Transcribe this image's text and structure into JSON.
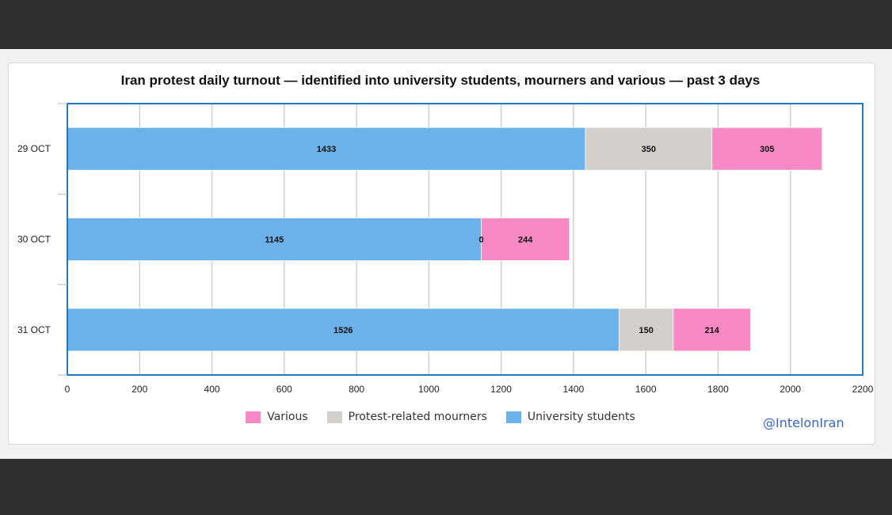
{
  "chart_data": {
    "type": "bar",
    "orientation": "horizontal",
    "stacked": true,
    "title": "Iran protest daily turnout — identified into university students, mourners and various — past 3 days",
    "categories": [
      "29 OCT",
      "30 OCT",
      "31 OCT"
    ],
    "series": [
      {
        "name": "University students",
        "color": "#6cb2ea",
        "values": [
          1433,
          1145,
          1526
        ]
      },
      {
        "name": "Protest-related mourners",
        "color": "#d2cfcc",
        "values": [
          350,
          0,
          150
        ]
      },
      {
        "name": "Various",
        "color": "#f78ac4",
        "values": [
          305,
          244,
          214
        ]
      }
    ],
    "legend_order": [
      "Various",
      "Protest-related mourners",
      "University students"
    ],
    "xlim": [
      0,
      2200
    ],
    "xticks": [
      0,
      200,
      400,
      600,
      800,
      1000,
      1200,
      1400,
      1600,
      1800,
      2000,
      2200
    ],
    "xlabel": "",
    "ylabel": "",
    "grid": true,
    "legend_position": "bottom",
    "frame_color": "#1f7ac0"
  },
  "watermark": "@IntelonIran"
}
